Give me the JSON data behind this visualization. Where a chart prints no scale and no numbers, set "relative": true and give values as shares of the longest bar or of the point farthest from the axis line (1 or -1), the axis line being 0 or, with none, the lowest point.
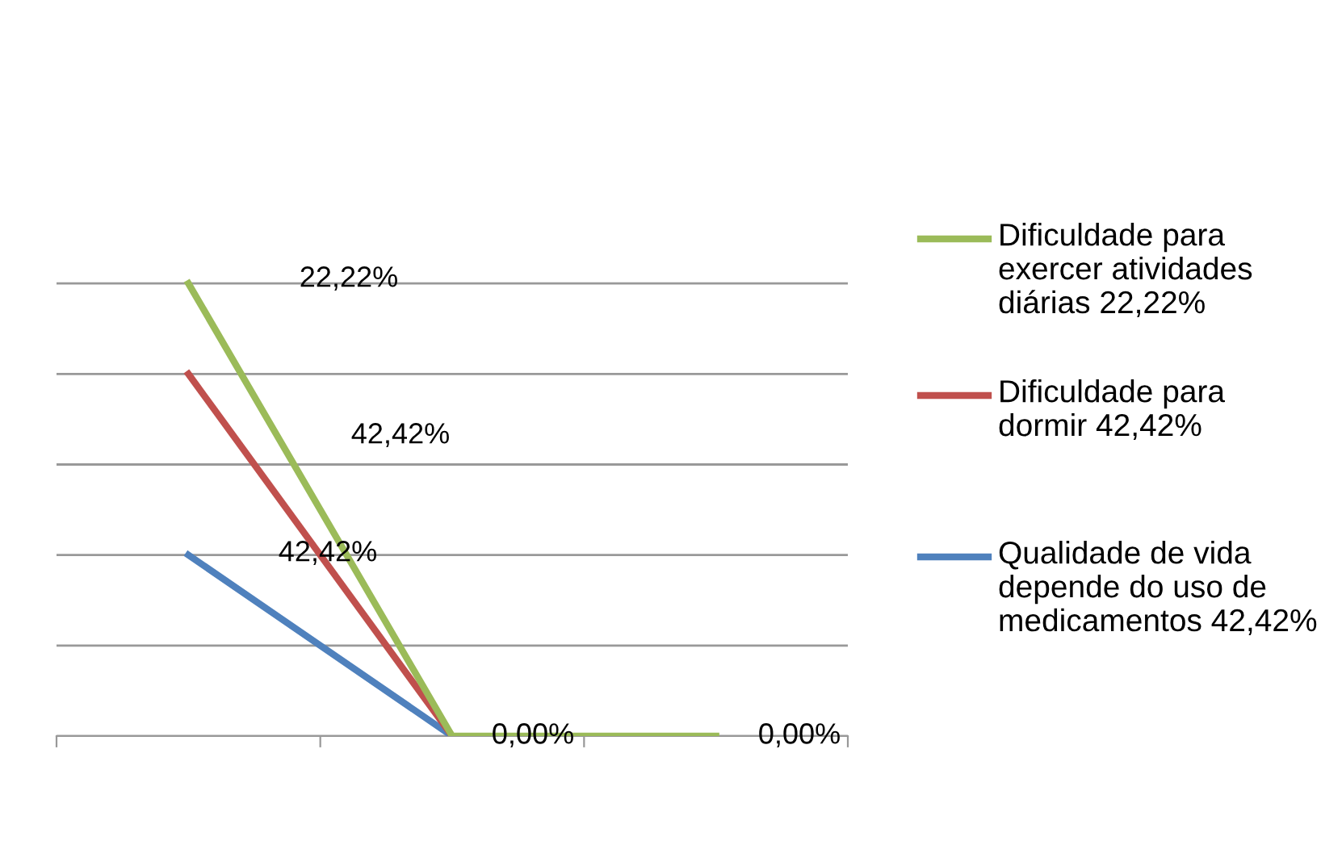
{
  "chart_data": {
    "type": "line",
    "relative": true,
    "categories": [
      null,
      null,
      null
    ],
    "series": [
      {
        "name": "Dificuldade para exercer atividades diárias 22,22%",
        "color": "#9bbb59",
        "values": [
          1,
          0,
          0
        ]
      },
      {
        "name": "Dificuldade para dormir 42,42%",
        "color": "#c0504d",
        "values": [
          0.8,
          0,
          null
        ]
      },
      {
        "name": "Qualidade de vida depende do uso de medicamentos 42,42%",
        "color": "#4f81bd",
        "values": [
          0.4,
          0,
          null
        ]
      }
    ],
    "annotations": [
      "22,22%",
      "42,42%",
      "42,42%",
      "0,00%",
      "0,00%"
    ],
    "grid": "y",
    "legend": "right",
    "marker": "none",
    "line_style": "solid"
  }
}
